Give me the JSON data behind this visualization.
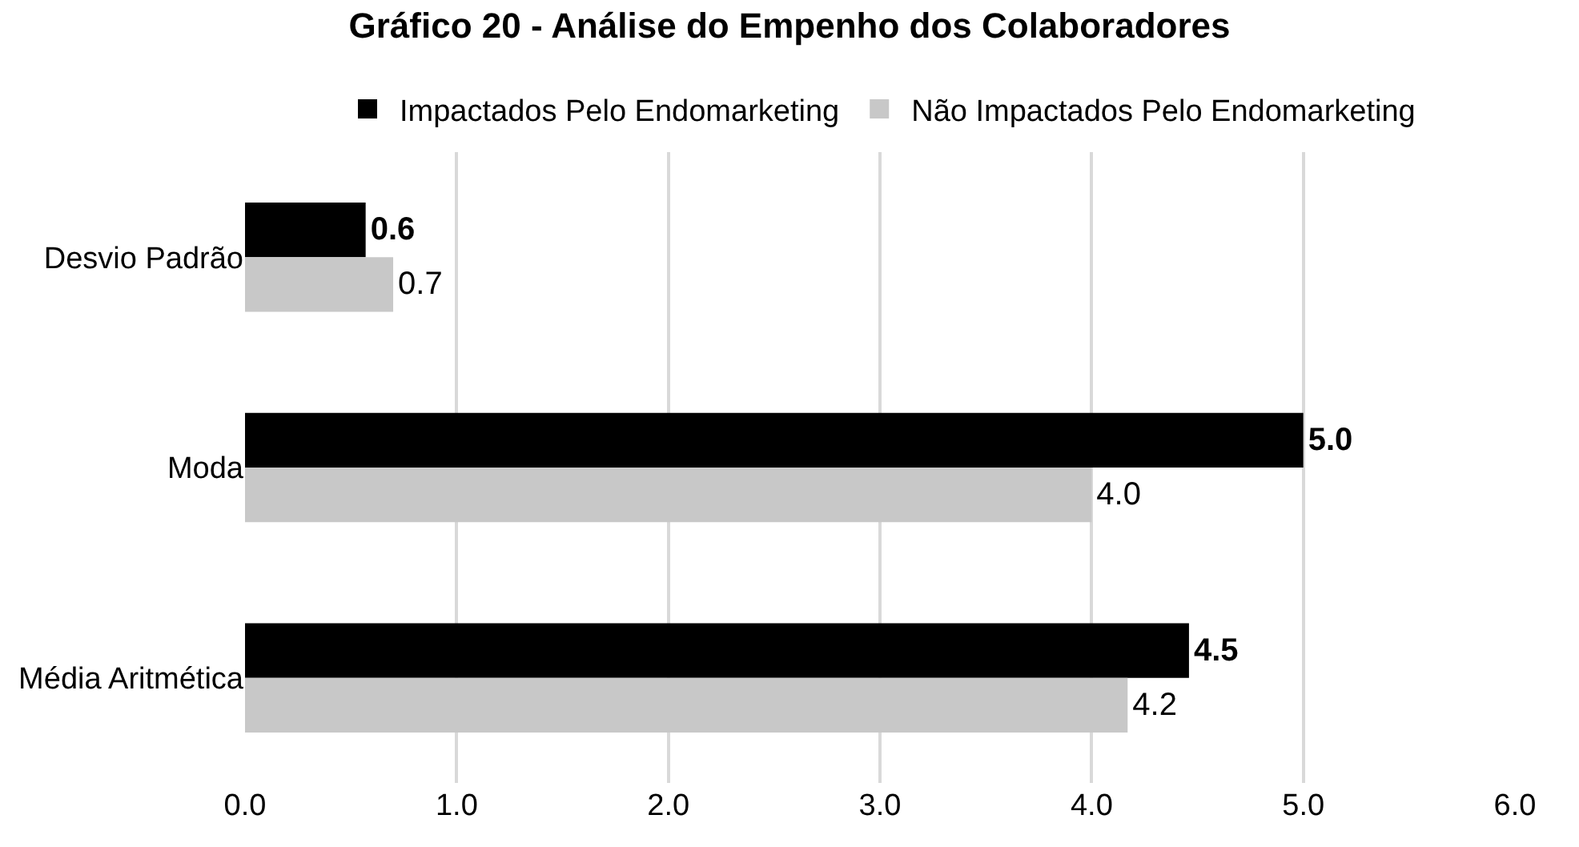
{
  "chart_data": {
    "type": "bar",
    "orientation": "horizontal",
    "title": "Gráfico 20 - Análise do Empenho dos Colaboradores",
    "categories": [
      "Desvio Padrão",
      "Moda",
      "Média Aritmética"
    ],
    "series": [
      {
        "name": "Impactados Pelo Endomarketing",
        "color": "#000000",
        "values": [
          0.57,
          5.0,
          4.46
        ],
        "value_labels": [
          "0.6",
          "5.0",
          "4.5"
        ]
      },
      {
        "name": "Não Impactados Pelo Endomarketing",
        "color": "#c8c8c8",
        "values": [
          0.7,
          4.0,
          4.17
        ],
        "value_labels": [
          "0.7",
          "4.0",
          "4.2"
        ]
      }
    ],
    "xlim": [
      0,
      6
    ],
    "xticks": [
      {
        "value": 0,
        "label": "0.0"
      },
      {
        "value": 1,
        "label": "1.0"
      },
      {
        "value": 2,
        "label": "2.0"
      },
      {
        "value": 3,
        "label": "3.0"
      },
      {
        "value": 4,
        "label": "4.0"
      },
      {
        "value": 5,
        "label": "5.0"
      },
      {
        "value": 6,
        "label": "6.0"
      }
    ],
    "grid": "x",
    "legend": "top"
  }
}
